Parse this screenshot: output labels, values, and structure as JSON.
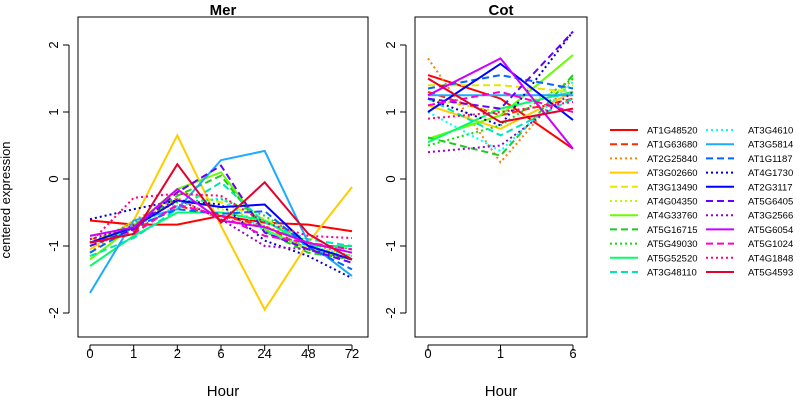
{
  "figure": {
    "ylabel": "centered expression"
  },
  "chart_data": [
    {
      "type": "line",
      "title": "Mer",
      "xlabel": "Hour",
      "ylabel": "centered expression",
      "categories": [
        "0",
        "1",
        "2",
        "6",
        "24",
        "48",
        "72"
      ],
      "ylim": [
        -2.2,
        2.2
      ],
      "yticks": [
        -2,
        -1,
        0,
        1,
        2
      ],
      "series": [
        {
          "name": "AT1G48520",
          "color": "#ff0000",
          "dash": "solid",
          "values": [
            -0.62,
            -0.68,
            -0.68,
            -0.55,
            -0.65,
            -0.68,
            -0.78
          ]
        },
        {
          "name": "AT1G63680",
          "color": "#ff2a00",
          "dash": "dashed",
          "values": [
            -0.95,
            -0.78,
            -0.4,
            -0.55,
            -0.7,
            -1.05,
            -1.2
          ]
        },
        {
          "name": "AT2G25840",
          "color": "#ff8000",
          "dash": "dotted",
          "values": [
            -1.1,
            -0.62,
            -0.28,
            -0.62,
            -0.7,
            -0.95,
            -1.15
          ]
        },
        {
          "name": "AT3G02660",
          "color": "#ffcc00",
          "dash": "solid",
          "values": [
            -1.05,
            -0.62,
            0.65,
            -0.7,
            -1.95,
            -0.95,
            -0.12
          ]
        },
        {
          "name": "AT3G13490",
          "color": "#e6e600",
          "dash": "dashed",
          "values": [
            -0.9,
            -0.75,
            -0.18,
            -0.35,
            -0.6,
            -0.95,
            -1.1
          ]
        },
        {
          "name": "AT4G04350",
          "color": "#b3ff00",
          "dash": "dotted",
          "values": [
            -1.0,
            -0.7,
            -0.3,
            -0.45,
            -0.62,
            -1.0,
            -1.15
          ]
        },
        {
          "name": "AT4G33760",
          "color": "#66ff00",
          "dash": "solid",
          "values": [
            -1.2,
            -0.7,
            -0.15,
            0.1,
            -0.75,
            -1.05,
            -1.2
          ]
        },
        {
          "name": "AT5G16715",
          "color": "#1ecc1e",
          "dash": "dashed",
          "values": [
            -1.0,
            -0.72,
            -0.25,
            0.05,
            -0.78,
            -1.1,
            -1.2
          ]
        },
        {
          "name": "AT5G49030",
          "color": "#00e600",
          "dash": "dotted",
          "values": [
            -0.95,
            -0.65,
            -0.35,
            -0.3,
            -0.55,
            -0.95,
            -1.05
          ]
        },
        {
          "name": "AT5G52520",
          "color": "#00ff66",
          "dash": "solid",
          "values": [
            -1.3,
            -0.85,
            -0.5,
            -0.5,
            -0.62,
            -1.0,
            -1.0
          ]
        },
        {
          "name": "AT3G48110",
          "color": "#00e6b3",
          "dash": "dashed",
          "values": [
            -1.15,
            -0.88,
            -0.45,
            -0.05,
            -0.65,
            -0.9,
            -1.0
          ]
        },
        {
          "name": "AT3G4610",
          "color": "#00ffff",
          "dash": "dotted",
          "values": [
            -1.0,
            -0.72,
            -0.4,
            -0.28,
            -0.78,
            -1.0,
            -1.15
          ]
        },
        {
          "name": "AT3G5814",
          "color": "#1eaaff",
          "dash": "solid",
          "values": [
            -1.7,
            -0.62,
            -0.45,
            0.28,
            0.42,
            -0.95,
            -1.45
          ]
        },
        {
          "name": "AT1G1187",
          "color": "#0066ff",
          "dash": "dashed",
          "values": [
            -1.1,
            -0.72,
            -0.45,
            -0.52,
            -0.48,
            -1.02,
            -1.35
          ]
        },
        {
          "name": "AT4G1730",
          "color": "#0000cc",
          "dash": "dotted",
          "values": [
            -0.6,
            -0.45,
            -0.32,
            -0.38,
            -0.92,
            -1.15,
            -1.48
          ]
        },
        {
          "name": "AT2G3117",
          "color": "#0000ff",
          "dash": "solid",
          "values": [
            -0.95,
            -0.72,
            -0.32,
            -0.42,
            -0.38,
            -1.0,
            -1.2
          ]
        },
        {
          "name": "AT5G6405",
          "color": "#6600ff",
          "dash": "dashed",
          "values": [
            -1.0,
            -0.75,
            -0.2,
            0.2,
            -0.8,
            -1.05,
            -1.25
          ]
        },
        {
          "name": "AT3G2566",
          "color": "#9900cc",
          "dash": "dotted",
          "values": [
            -0.9,
            -0.7,
            -0.3,
            -0.6,
            -1.0,
            -1.05,
            -1.2
          ]
        },
        {
          "name": "AT5G6054",
          "color": "#cc00ff",
          "dash": "solid",
          "values": [
            -0.85,
            -0.72,
            -0.15,
            -0.62,
            -0.72,
            -0.95,
            -1.1
          ]
        },
        {
          "name": "AT5G1024",
          "color": "#ff00cc",
          "dash": "dashed",
          "values": [
            -0.95,
            -0.82,
            -0.38,
            -0.55,
            -0.85,
            -0.95,
            -1.05
          ]
        },
        {
          "name": "AT4G1848",
          "color": "#ff0080",
          "dash": "dotted",
          "values": [
            -0.95,
            -0.28,
            -0.22,
            -0.25,
            -0.65,
            -0.85,
            -0.88
          ]
        },
        {
          "name": "AT5G4593",
          "color": "#e6002e",
          "dash": "solid",
          "values": [
            -0.95,
            -0.82,
            0.22,
            -0.65,
            -0.05,
            -0.82,
            -1.2
          ]
        }
      ]
    },
    {
      "type": "line",
      "title": "Cot",
      "xlabel": "Hour",
      "categories": [
        "0",
        "1",
        "6"
      ],
      "ylim": [
        -2.2,
        2.2
      ],
      "yticks": [
        -2,
        -1,
        0,
        1,
        2
      ],
      "series": [
        {
          "name": "AT1G48520",
          "color": "#ff0000",
          "dash": "solid",
          "values": [
            1.55,
            1.2,
            0.45
          ]
        },
        {
          "name": "AT1G63680",
          "color": "#ff2a00",
          "dash": "dashed",
          "values": [
            1.3,
            0.95,
            1.2
          ]
        },
        {
          "name": "AT2G25840",
          "color": "#ff8000",
          "dash": "dotted",
          "values": [
            1.8,
            0.25,
            1.5
          ]
        },
        {
          "name": "AT3G02660",
          "color": "#ffcc00",
          "dash": "solid",
          "values": [
            1.1,
            0.75,
            1.3
          ]
        },
        {
          "name": "AT3G13490",
          "color": "#e6e600",
          "dash": "dashed",
          "values": [
            1.4,
            1.4,
            1.3
          ]
        },
        {
          "name": "AT4G04350",
          "color": "#b3ff00",
          "dash": "dotted",
          "values": [
            1.2,
            1.0,
            1.4
          ]
        },
        {
          "name": "AT4G33760",
          "color": "#66ff00",
          "dash": "solid",
          "values": [
            0.6,
            0.95,
            1.85
          ]
        },
        {
          "name": "AT5G16715",
          "color": "#1ecc1e",
          "dash": "dashed",
          "values": [
            0.62,
            0.35,
            1.55
          ]
        },
        {
          "name": "AT5G49030",
          "color": "#00e600",
          "dash": "dotted",
          "values": [
            0.5,
            0.8,
            1.5
          ]
        },
        {
          "name": "AT5G52520",
          "color": "#00ff66",
          "dash": "solid",
          "values": [
            0.55,
            1.05,
            1.3
          ]
        },
        {
          "name": "AT3G48110",
          "color": "#00e6b3",
          "dash": "dashed",
          "values": [
            1.2,
            0.65,
            1.2
          ]
        },
        {
          "name": "AT3G4610",
          "color": "#00ffff",
          "dash": "dotted",
          "values": [
            1.0,
            0.42,
            1.45
          ]
        },
        {
          "name": "AT3G5814",
          "color": "#1eaaff",
          "dash": "solid",
          "values": [
            1.25,
            1.25,
            1.25
          ]
        },
        {
          "name": "AT1G1187",
          "color": "#0066ff",
          "dash": "dashed",
          "values": [
            1.35,
            1.55,
            1.35
          ]
        },
        {
          "name": "AT4G1730",
          "color": "#0000cc",
          "dash": "dotted",
          "values": [
            1.2,
            0.8,
            2.2
          ]
        },
        {
          "name": "AT2G3117",
          "color": "#0000ff",
          "dash": "solid",
          "values": [
            1.0,
            1.72,
            0.88
          ]
        },
        {
          "name": "AT5G6405",
          "color": "#6600ff",
          "dash": "dashed",
          "values": [
            1.2,
            1.05,
            2.2
          ]
        },
        {
          "name": "AT3G2566",
          "color": "#9900cc",
          "dash": "dotted",
          "values": [
            0.4,
            0.5,
            1.3
          ]
        },
        {
          "name": "AT5G6054",
          "color": "#cc00ff",
          "dash": "solid",
          "values": [
            1.25,
            1.8,
            0.45
          ]
        },
        {
          "name": "AT5G1024",
          "color": "#ff00cc",
          "dash": "dashed",
          "values": [
            1.1,
            1.3,
            1.0
          ]
        },
        {
          "name": "AT4G1848",
          "color": "#ff0080",
          "dash": "dotted",
          "values": [
            0.9,
            1.0,
            1.15
          ]
        },
        {
          "name": "AT5G4593",
          "color": "#e6002e",
          "dash": "solid",
          "values": [
            1.5,
            0.85,
            1.05
          ]
        }
      ]
    }
  ]
}
